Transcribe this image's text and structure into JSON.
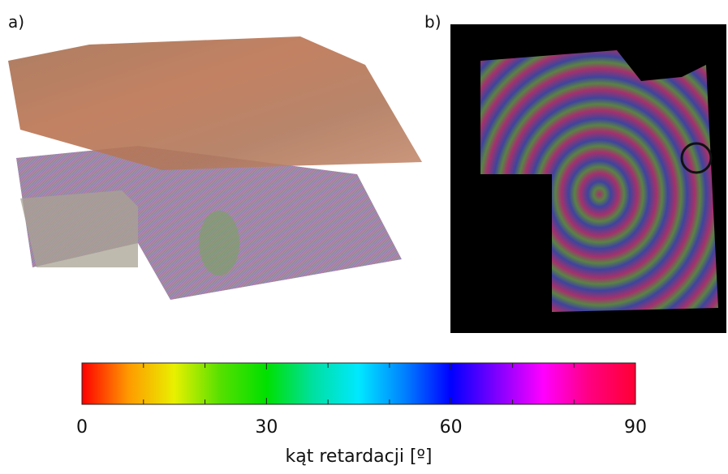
{
  "panel_labels": [
    "a)",
    "b)"
  ],
  "chart_data": {
    "type": "colorbar",
    "xlabel": "kąt retardacji [º]",
    "xlim": [
      0,
      90
    ],
    "xticks": [
      0,
      30,
      60,
      90
    ],
    "minor_xticks": [
      10,
      20,
      40,
      50,
      70,
      80
    ],
    "colors": [
      "#ff0000",
      "#ff9900",
      "#e8f000",
      "#55e000",
      "#00e000",
      "#00e0a0",
      "#00e8ff",
      "#0080ff",
      "#0000ff",
      "#8000ff",
      "#ff00ff",
      "#ff0080",
      "#ff0033"
    ]
  }
}
